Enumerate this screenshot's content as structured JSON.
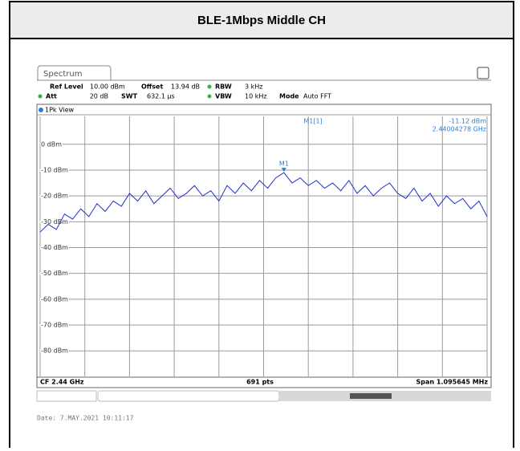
{
  "header": {
    "title": "BLE-1Mbps Middle CH"
  },
  "screen": {
    "tab": "Spectrum",
    "settings": [
      {
        "label": "Ref Level",
        "value": "10.00 dBm"
      },
      {
        "label": "Offset",
        "value": "13.94 dB"
      },
      {
        "label": "RBW",
        "value": "3 kHz"
      },
      {
        "label": "Att",
        "value": "20 dB"
      },
      {
        "label": "SWT",
        "value": "632.1 µs"
      },
      {
        "label": "VBW",
        "value": "10 kHz"
      },
      {
        "label": "Mode",
        "value": "Auto FFT"
      }
    ],
    "view": "1Pk View",
    "marker": {
      "name": "M1[1]",
      "level": "-11.12 dBm",
      "frequency": "2.44004278 GHz",
      "label": "M1",
      "index": 30
    },
    "ylim": [
      -90,
      10
    ],
    "yticks": [
      {
        "value": 0,
        "label": "0 dBm"
      },
      {
        "value": -10,
        "label": "-10 dBm"
      },
      {
        "value": -20,
        "label": "-20 dBm"
      },
      {
        "value": -30,
        "label": "-30 dBm"
      },
      {
        "value": -40,
        "label": "-40 dBm"
      },
      {
        "value": -50,
        "label": "-50 dBm"
      },
      {
        "value": -60,
        "label": "-60 dBm"
      },
      {
        "value": -70,
        "label": "-70 dBm"
      },
      {
        "value": -80,
        "label": "-80 dBm"
      }
    ],
    "trace": {
      "color": "#2030d0",
      "values": [
        -34,
        -31,
        -33,
        -27,
        -29,
        -25,
        -28,
        -23,
        -26,
        -22,
        -24,
        -19,
        -22,
        -18,
        -23,
        -20,
        -17,
        -21,
        -19,
        -16,
        -20,
        -18,
        -22,
        -16,
        -19,
        -15,
        -18,
        -14,
        -17,
        -13,
        -11,
        -15,
        -13,
        -16,
        -14,
        -17,
        -15,
        -18,
        -14,
        -19,
        -16,
        -20,
        -17,
        -15,
        -19,
        -21,
        -17,
        -22,
        -19,
        -24,
        -20,
        -23,
        -21,
        -25,
        -22,
        -28
      ]
    },
    "footer": {
      "center_frequency": "CF 2.44 GHz",
      "points": "691 pts",
      "span": "Span 1.095645 MHz"
    }
  },
  "date": "Date: 7.MAY.2021  10:11:17"
}
